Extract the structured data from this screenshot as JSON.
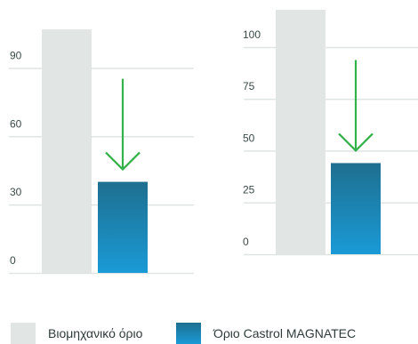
{
  "chart_data": [
    {
      "type": "bar",
      "categories": [
        "Βιομηχανικό όριο",
        "Όριο Castrol MAGNATEC"
      ],
      "values": [
        107,
        40
      ],
      "yticks": [
        0,
        30,
        60,
        90
      ],
      "ylim": [
        0,
        107
      ],
      "annotation": "arrow-down"
    },
    {
      "type": "bar",
      "categories": [
        "Βιομηχανικό όριο",
        "Όριο Castrol MAGNATEC"
      ],
      "values": [
        118,
        44
      ],
      "yticks": [
        0,
        25,
        50,
        75,
        100
      ],
      "ylim": [
        0,
        118
      ],
      "annotation": "arrow-down"
    }
  ],
  "legend": {
    "items": [
      {
        "label": "Βιομηχανικό όριο",
        "color": "#e1e6e5"
      },
      {
        "label": "Όριο Castrol MAGNATEC",
        "color": "#1f7fb3"
      }
    ]
  },
  "colors": {
    "industry_bar": "#e1e6e5",
    "magnatec_top": "#1e6f8f",
    "magnatec_bottom": "#1a9ad6",
    "arrow": "#33b24a",
    "gridline": "#dfe5e3"
  }
}
